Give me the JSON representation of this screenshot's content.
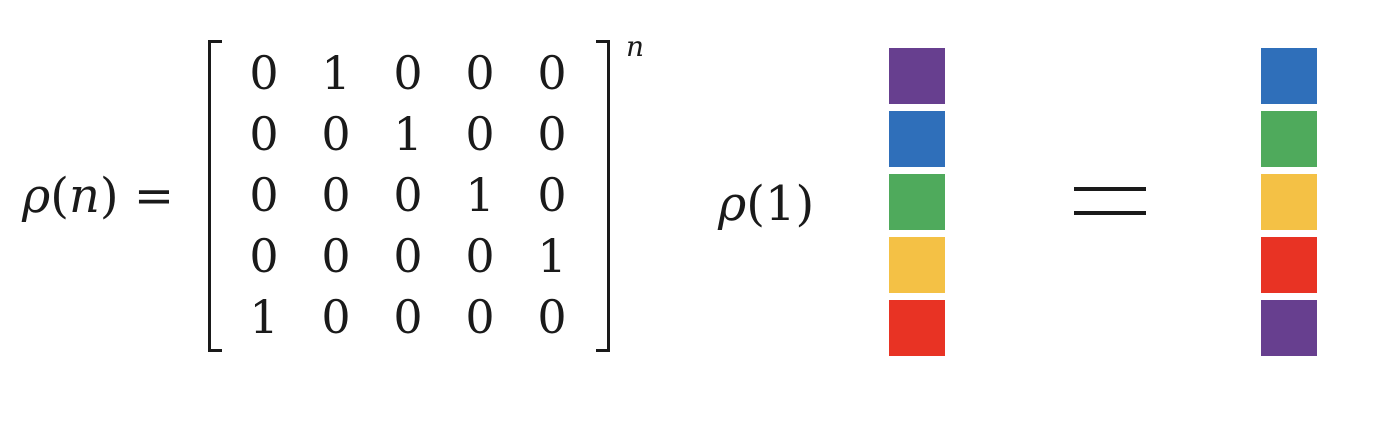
{
  "equation": {
    "lhs_symbol": "ρ",
    "lhs_open": "(",
    "lhs_var": "n",
    "lhs_close_eq": ") =",
    "matrix": [
      [
        "0",
        "1",
        "0",
        "0",
        "0"
      ],
      [
        "0",
        "0",
        "1",
        "0",
        "0"
      ],
      [
        "0",
        "0",
        "0",
        "1",
        "0"
      ],
      [
        "0",
        "0",
        "0",
        "0",
        "1"
      ],
      [
        "1",
        "0",
        "0",
        "0",
        "0"
      ]
    ],
    "exponent": "n"
  },
  "applied": {
    "symbol": "ρ",
    "arg": "(1)"
  },
  "colors": {
    "purple": "#673f8f",
    "blue": "#2f6fba",
    "green": "#4faa5c",
    "yellow": "#f4c145",
    "red": "#e83324"
  },
  "input_stack": [
    "purple",
    "blue",
    "green",
    "yellow",
    "red"
  ],
  "output_stack": [
    "blue",
    "green",
    "yellow",
    "red",
    "purple"
  ]
}
